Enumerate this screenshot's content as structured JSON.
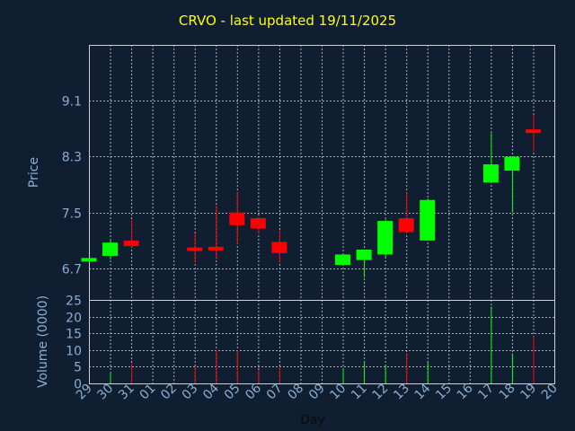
{
  "title": "CRVO - last updated 19/11/2025",
  "colors": {
    "background": "#0f1e31",
    "title": "#ffff00",
    "axis_text": "#8aaed4",
    "up": "#00ff00",
    "down": "#ff0000",
    "grid": "#c8c8c8"
  },
  "chart_data": {
    "type": "candlestick",
    "title": "CRVO - last updated 19/11/2025",
    "xlabel": "Day",
    "price_panel": {
      "ylabel": "Price",
      "yticks": [
        6.7,
        7.5,
        8.3,
        9.1
      ],
      "ylim": [
        6.25,
        9.9
      ],
      "grid": true
    },
    "volume_panel": {
      "ylabel": "Volume (0000)",
      "yticks": [
        0,
        5,
        10,
        15,
        20,
        25
      ],
      "ylim": [
        0,
        25
      ],
      "grid": true
    },
    "x_labels": [
      "29",
      "30",
      "31",
      "01",
      "02",
      "03",
      "04",
      "05",
      "06",
      "07",
      "08",
      "09",
      "10",
      "11",
      "12",
      "13",
      "14",
      "15",
      "16",
      "17",
      "18",
      "19",
      "20"
    ],
    "candles": [
      {
        "day": "29",
        "open": 6.8,
        "high": 6.85,
        "low": 6.8,
        "close": 6.85,
        "volume": 0
      },
      {
        "day": "30",
        "open": 6.88,
        "high": 7.1,
        "low": 6.83,
        "close": 7.07,
        "volume": 3.5
      },
      {
        "day": "31",
        "open": 7.1,
        "high": 7.4,
        "low": 7.0,
        "close": 7.02,
        "volume": 6
      },
      {
        "day": "03",
        "open": 7.0,
        "high": 7.2,
        "low": 6.78,
        "close": 6.98,
        "volume": 5
      },
      {
        "day": "04",
        "open": 7.01,
        "high": 7.6,
        "low": 6.83,
        "close": 6.99,
        "volume": 10
      },
      {
        "day": "05",
        "open": 7.5,
        "high": 7.8,
        "low": 7.05,
        "close": 7.32,
        "volume": 10
      },
      {
        "day": "06",
        "open": 7.42,
        "high": 7.43,
        "low": 7.2,
        "close": 7.27,
        "volume": 4
      },
      {
        "day": "07",
        "open": 7.08,
        "high": 7.25,
        "low": 6.78,
        "close": 6.92,
        "volume": 5
      },
      {
        "day": "10",
        "open": 6.75,
        "high": 6.9,
        "low": 6.75,
        "close": 6.9,
        "volume": 4.5
      },
      {
        "day": "11",
        "open": 6.82,
        "high": 6.97,
        "low": 6.57,
        "close": 6.97,
        "volume": 6.5
      },
      {
        "day": "12",
        "open": 6.9,
        "high": 7.4,
        "low": 6.85,
        "close": 7.38,
        "volume": 5.5
      },
      {
        "day": "13",
        "open": 7.42,
        "high": 7.8,
        "low": 7.2,
        "close": 7.22,
        "volume": 9
      },
      {
        "day": "14",
        "open": 7.1,
        "high": 7.7,
        "low": 7.1,
        "close": 7.68,
        "volume": 6.5
      },
      {
        "day": "17",
        "open": 7.93,
        "high": 8.64,
        "low": 7.93,
        "close": 8.19,
        "volume": 23
      },
      {
        "day": "18",
        "open": 8.1,
        "high": 8.3,
        "low": 7.5,
        "close": 8.3,
        "volume": 9
      },
      {
        "day": "19",
        "open": 8.69,
        "high": 8.9,
        "low": 8.37,
        "close": 8.64,
        "volume": 14
      }
    ]
  }
}
